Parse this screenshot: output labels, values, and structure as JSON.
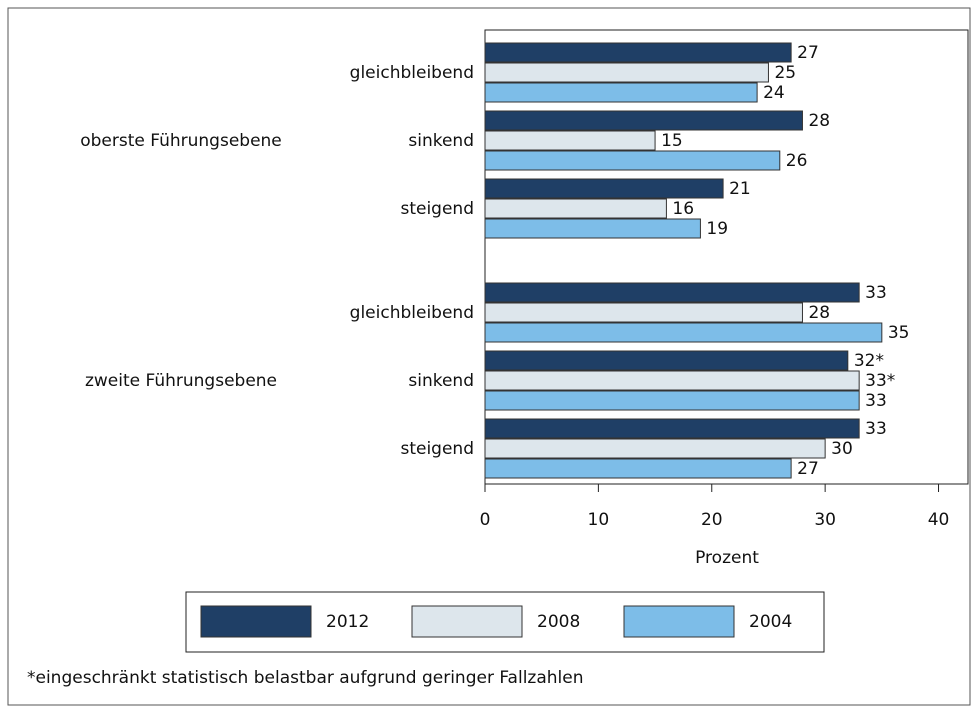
{
  "chart_data": {
    "type": "bar",
    "orientation": "horizontal",
    "groups": [
      "oberste Führungsebene",
      "zweite Führungsebene"
    ],
    "categories": [
      "gleichbleibend",
      "sinkend",
      "steigend",
      "gleichbleibend",
      "sinkend",
      "steigend"
    ],
    "series": [
      {
        "name": "2012",
        "color": "#1f3f66",
        "values": [
          27,
          28,
          21,
          33,
          32,
          33
        ],
        "value_labels": [
          "27",
          "28",
          "21",
          "33",
          "32*",
          "33"
        ]
      },
      {
        "name": "2008",
        "color": "#dde6ec",
        "values": [
          25,
          15,
          16,
          28,
          33,
          30
        ],
        "value_labels": [
          "25",
          "15",
          "16",
          "28",
          "33*",
          "30"
        ]
      },
      {
        "name": "2004",
        "color": "#7dbde8",
        "values": [
          24,
          26,
          19,
          35,
          33,
          27
        ],
        "value_labels": [
          "24",
          "26",
          "19",
          "35",
          "33",
          "27"
        ]
      }
    ],
    "xlabel": "Prozent",
    "xlim": [
      0,
      42.6
    ],
    "xticks": [
      0,
      10,
      20,
      30,
      40
    ],
    "note": "*eingeschränkt statistisch belastbar aufgrund geringer Fallzahlen"
  }
}
